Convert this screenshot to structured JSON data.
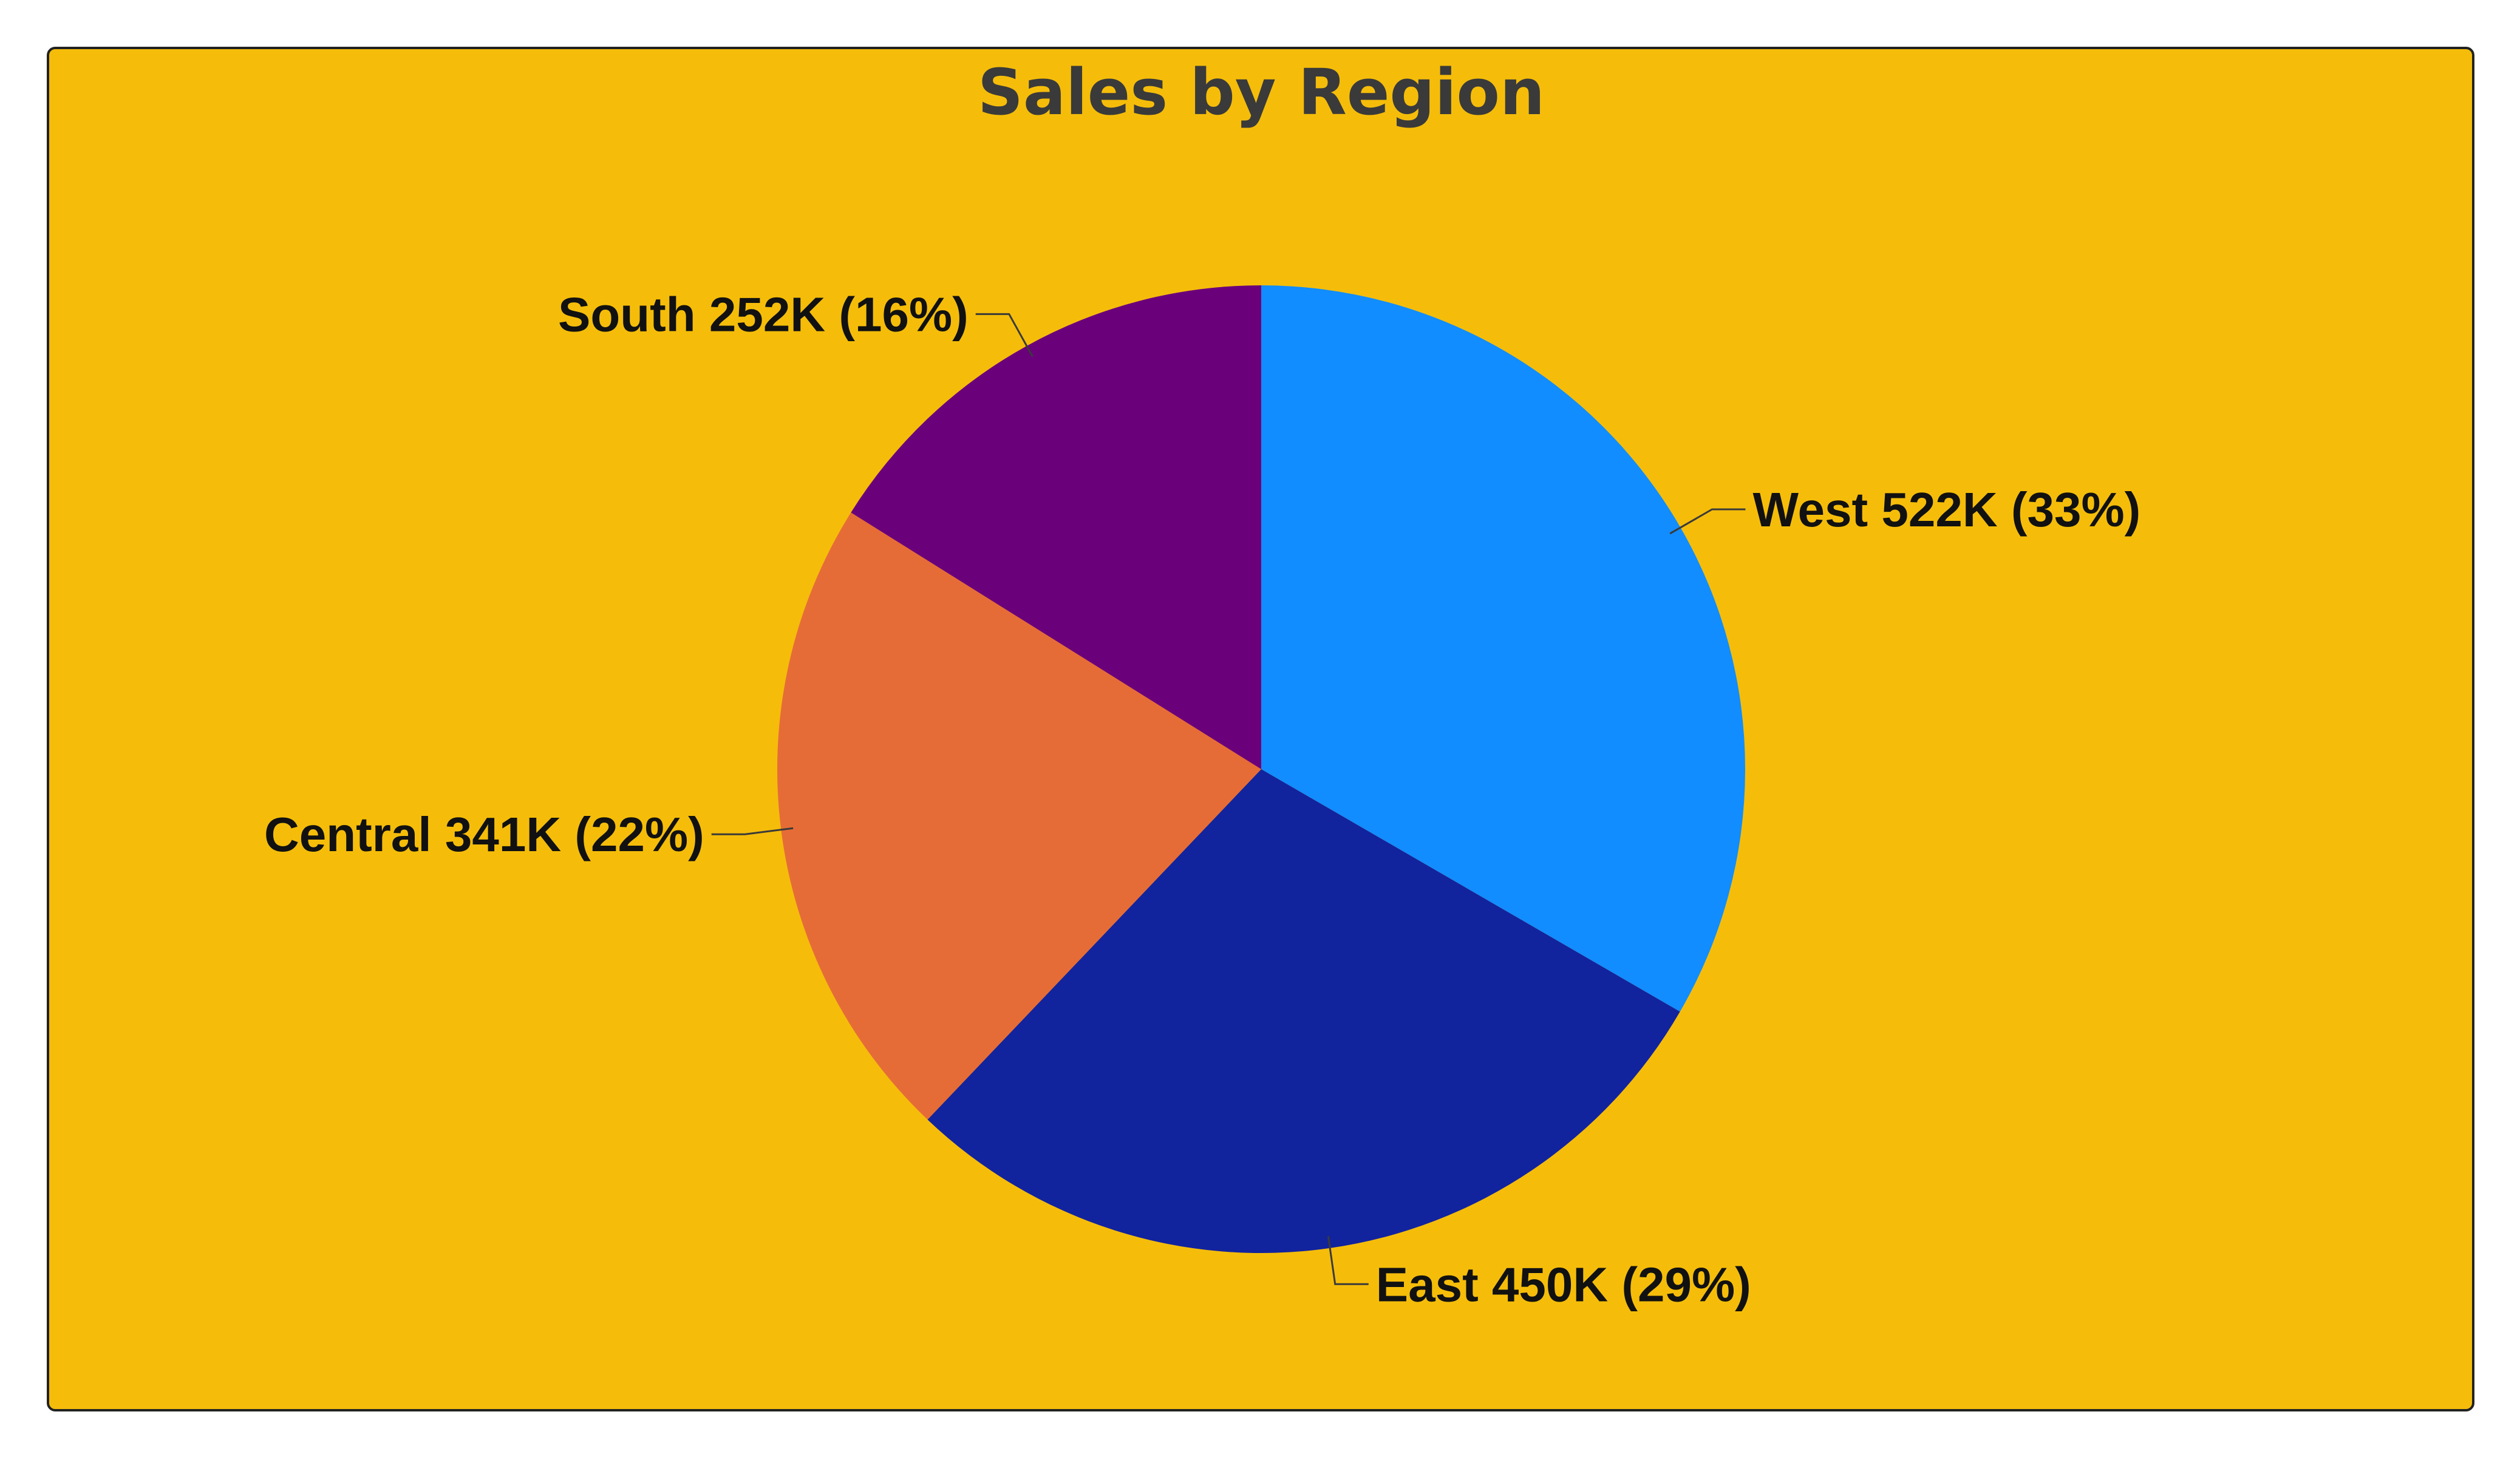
{
  "chart_data": {
    "type": "pie",
    "title": "Sales by Region",
    "background_color": "#F5BD0A",
    "start_angle": "12 o'clock",
    "direction": "clockwise",
    "slices": [
      {
        "name": "West",
        "value": 522,
        "unit": "K",
        "percent": 33,
        "label": "West 522K (33%)",
        "color": "#118DFF"
      },
      {
        "name": "East",
        "value": 450,
        "unit": "K",
        "percent": 29,
        "label": "East 450K (29%)",
        "color": "#12239E"
      },
      {
        "name": "Central",
        "value": 341,
        "unit": "K",
        "percent": 22,
        "label": "Central 341K (22%)",
        "color": "#E66C37"
      },
      {
        "name": "South",
        "value": 252,
        "unit": "K",
        "percent": 16,
        "label": "South 252K (16%)",
        "color": "#6B007B"
      }
    ]
  }
}
